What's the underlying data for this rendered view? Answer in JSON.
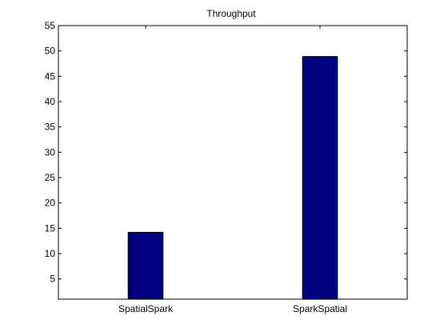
{
  "chart_data": {
    "type": "bar",
    "title": "Throughput",
    "xlabel": "",
    "ylabel": "",
    "categories": [
      "SpatialSpark",
      "SparkSpatial"
    ],
    "values": [
      14.2,
      48.9
    ],
    "ylim": [
      1,
      55
    ],
    "yticks": [
      5,
      10,
      15,
      20,
      25,
      30,
      35,
      40,
      45,
      50,
      55
    ],
    "grid": false,
    "bar_color": "#000080",
    "bar_edge_color": "#000000"
  }
}
